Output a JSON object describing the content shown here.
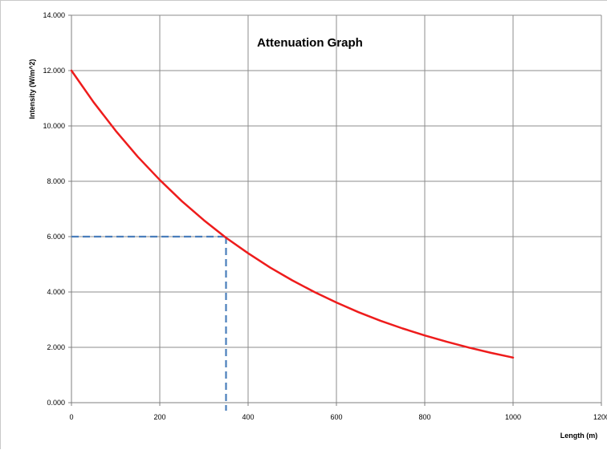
{
  "chart_data": {
    "type": "line",
    "title": "Attenuation Graph",
    "xlabel": "Length (m)",
    "ylabel": "Intensity (W/m^2)",
    "xlim": [
      0,
      1200
    ],
    "ylim": [
      0,
      14
    ],
    "x_ticks": [
      0,
      200,
      400,
      600,
      800,
      1000,
      1200
    ],
    "x_tick_labels": [
      "0",
      "200",
      "400",
      "600",
      "800",
      "1000",
      "1200"
    ],
    "y_ticks": [
      0,
      2,
      4,
      6,
      8,
      10,
      12,
      14
    ],
    "y_tick_labels": [
      "0.000",
      "2.000",
      "4.000",
      "6.000",
      "8.000",
      "10.000",
      "12.000",
      "14.000"
    ],
    "grid": true,
    "series": [
      {
        "color": "#ee1c1c",
        "x": [
          0,
          50,
          100,
          150,
          200,
          250,
          300,
          350,
          400,
          450,
          500,
          550,
          600,
          650,
          700,
          750,
          800,
          850,
          900,
          950,
          1000
        ],
        "y": [
          12.0,
          10.86,
          9.83,
          8.89,
          8.05,
          7.28,
          6.59,
          5.96,
          5.4,
          4.88,
          4.42,
          4.0,
          3.62,
          3.27,
          2.96,
          2.68,
          2.43,
          2.2,
          1.99,
          1.8,
          1.63
        ]
      }
    ],
    "annotations": [
      {
        "type": "dashed-guide",
        "color": "#4a7ebb",
        "x": 350,
        "y": 6.0
      }
    ]
  }
}
